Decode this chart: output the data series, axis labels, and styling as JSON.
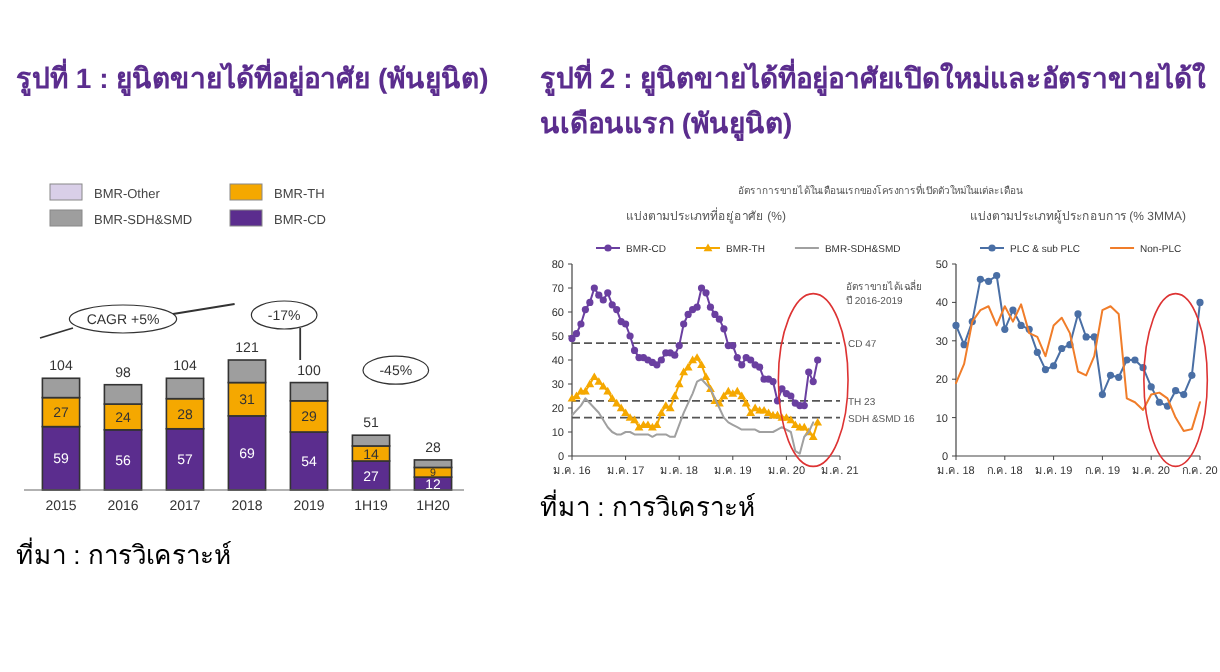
{
  "chart_data": [
    {
      "type": "bar",
      "stacked": true,
      "title": "รูปที่ 1 : ยูนิตขายได้ที่อยู่อาศัย (พันยูนิต)",
      "legend": "top",
      "categories": [
        "2015",
        "2016",
        "2017",
        "2018",
        "2019",
        "1H19",
        "1H20"
      ],
      "series": [
        {
          "name": "BMR-CD",
          "color": "#5b2d8e",
          "values": [
            59,
            56,
            57,
            69,
            54,
            27,
            12
          ],
          "value_labels": [
            "59",
            "56",
            "57",
            "69",
            "54",
            "27",
            "12"
          ]
        },
        {
          "name": "BMR-TH",
          "color": "#f5a800",
          "values": [
            27,
            24,
            28,
            31,
            29,
            14,
            9
          ],
          "value_labels": [
            "27",
            "24",
            "28",
            "31",
            "29",
            "14",
            "9"
          ]
        },
        {
          "name": "BMR-SDH&SMD",
          "color": "#9e9e9e",
          "values": [
            18,
            18,
            19,
            21,
            17,
            10,
            7
          ]
        },
        {
          "name": "BMR-Other",
          "color": "#d9cfe8",
          "values": [
            0,
            0,
            0,
            0,
            0,
            0,
            0
          ]
        }
      ],
      "totals": [
        "104",
        "98",
        "104",
        "121",
        "100",
        "51",
        "28"
      ],
      "annotations": [
        "CAGR +5%",
        "-17%",
        "-45%",
        "ที่มา : การวิเคราะห์"
      ]
    },
    {
      "type": "line",
      "title": "รูปที่ 2 : ยูนิตขายได้ที่อยู่อาศัยเปิดใหม่และอัตราขายได้ในเดือนแรก (พันยูนิต)",
      "subtitle": "อัตราการขายได้ในเดือนแรกของโครงการที่เปิดตัวใหม่ในแต่ละเดือน",
      "legend": "top",
      "x": [
        "2016-01",
        "2016-02",
        "2016-03",
        "2016-04",
        "2016-05",
        "2016-06",
        "2016-07",
        "2016-08",
        "2016-09",
        "2016-10",
        "2016-11",
        "2016-12",
        "2017-01",
        "2017-02",
        "2017-03",
        "2017-04",
        "2017-05",
        "2017-06",
        "2017-07",
        "2017-08",
        "2017-09",
        "2017-10",
        "2017-11",
        "2017-12",
        "2018-01",
        "2018-02",
        "2018-03",
        "2018-04",
        "2018-05",
        "2018-06",
        "2018-07",
        "2018-08",
        "2018-09",
        "2018-10",
        "2018-11",
        "2018-12",
        "2019-01",
        "2019-02",
        "2019-03",
        "2019-04",
        "2019-05",
        "2019-06",
        "2019-07",
        "2019-08",
        "2019-09",
        "2019-10",
        "2019-11",
        "2019-12",
        "2020-01",
        "2020-02",
        "2020-03",
        "2020-04",
        "2020-05",
        "2020-06",
        "2020-07",
        "2020-08"
      ],
      "series": [
        {
          "name": "BMR-CD",
          "color": "#6a3fa0",
          "marker": "circle",
          "values": [
            49,
            51,
            55,
            61,
            64,
            70,
            67,
            65,
            68,
            63,
            61,
            56,
            55,
            50,
            44,
            41,
            41,
            40,
            39,
            38,
            40,
            43,
            43,
            42,
            46,
            55,
            59,
            61,
            62,
            70,
            68,
            62,
            59,
            57,
            53,
            46,
            46,
            41,
            38,
            41,
            40,
            38,
            37,
            32,
            32,
            31,
            23,
            28,
            26,
            25,
            22,
            21,
            21,
            35,
            31,
            40
          ]
        },
        {
          "name": "BMR-TH",
          "color": "#f5a800",
          "marker": "triangle",
          "values": [
            24,
            25,
            27,
            27,
            30,
            33,
            31,
            29,
            27,
            24,
            22,
            20,
            18,
            16,
            15,
            12,
            13,
            13,
            12,
            13,
            18,
            21,
            20,
            25,
            30,
            35,
            37,
            40,
            41,
            38,
            33,
            28,
            23,
            22,
            25,
            27,
            26,
            27,
            25,
            22,
            18,
            20,
            19,
            19,
            18,
            17,
            17,
            16,
            16,
            15,
            13,
            12,
            12,
            10,
            8,
            14
          ]
        },
        {
          "name": "BMR-SDH&SMD",
          "color": "#a0a0a0",
          "marker": "none",
          "values": [
            17,
            19,
            21,
            24,
            22,
            20,
            18,
            15,
            12,
            10,
            9,
            9,
            10,
            10,
            9,
            9,
            9,
            9,
            8,
            9,
            9,
            9,
            8,
            8,
            13,
            18,
            22,
            26,
            31,
            32,
            30,
            28,
            24,
            20,
            16,
            14,
            13,
            12,
            11,
            11,
            11,
            11,
            10,
            10,
            10,
            10,
            11,
            12,
            11,
            10,
            2,
            1,
            8,
            10,
            14,
            null
          ]
        }
      ],
      "xlim": [
        "2016-01",
        "2021-01"
      ],
      "xticks": [
        {
          "value": "2016-01",
          "label": "ม.ค. 16"
        },
        {
          "value": "2017-01",
          "label": "ม.ค. 17"
        },
        {
          "value": "2018-01",
          "label": "ม.ค. 18"
        },
        {
          "value": "2019-01",
          "label": "ม.ค. 19"
        },
        {
          "value": "2020-01",
          "label": "ม.ค. 20"
        },
        {
          "value": "2021-01",
          "label": "ม.ค. 21"
        }
      ],
      "ylim": [
        0,
        80
      ],
      "yticks": [
        0,
        10,
        20,
        30,
        40,
        50,
        60,
        70,
        80
      ],
      "ref_lines": [
        {
          "axis": "y",
          "value": 47,
          "label": "CD 47",
          "color": "#555555",
          "line_style": "dashed"
        },
        {
          "axis": "y",
          "value": 23,
          "label": "TH 23",
          "color": "#555555",
          "line_style": "dashed"
        },
        {
          "axis": "y",
          "value": 16,
          "label": "SDH &SMD 16",
          "color": "#555555",
          "line_style": "dashed"
        }
      ],
      "annotations": [
        "แบ่งตามประเภทที่อยู่อาศัย (%)",
        "อัตราขายได้เฉลี่ย ปี 2016-2019",
        "ที่มา : การวิเคราะห์"
      ]
    },
    {
      "type": "line",
      "title": "แบ่งตามประเภทผู้ประกอบการ (% 3MMA)",
      "legend": "top",
      "x": [
        "2018-01",
        "2018-02",
        "2018-03",
        "2018-04",
        "2018-05",
        "2018-06",
        "2018-07",
        "2018-08",
        "2018-09",
        "2018-10",
        "2018-11",
        "2018-12",
        "2019-01",
        "2019-02",
        "2019-03",
        "2019-04",
        "2019-05",
        "2019-06",
        "2019-07",
        "2019-08",
        "2019-09",
        "2019-10",
        "2019-11",
        "2019-12",
        "2020-01",
        "2020-02",
        "2020-03",
        "2020-04",
        "2020-05",
        "2020-06",
        "2020-07"
      ],
      "series": [
        {
          "name": "PLC & sub PLC",
          "color": "#4a6fa5",
          "marker": "circle",
          "values": [
            34,
            29,
            35,
            46,
            45.5,
            47,
            33,
            38,
            34,
            33,
            27,
            22.5,
            23.5,
            28,
            29,
            37,
            31,
            31,
            16,
            21,
            20.5,
            25,
            25,
            23,
            18,
            14,
            13,
            17,
            16,
            21,
            40
          ]
        },
        {
          "name": "Non-PLC",
          "color": "#f07d2a",
          "marker": "none",
          "values": [
            19,
            24,
            35,
            38,
            39,
            34,
            39,
            35,
            39.5,
            32,
            31,
            26,
            34,
            36,
            32,
            22,
            21,
            26,
            38,
            39,
            37,
            15,
            14,
            12,
            16,
            16.5,
            15,
            10,
            6.5,
            7,
            14
          ]
        }
      ],
      "xlim": [
        "2018-01",
        "2020-07"
      ],
      "xticks": [
        {
          "value": "2018-01",
          "label": "ม.ค. 18"
        },
        {
          "value": "2018-07",
          "label": "ก.ค. 18"
        },
        {
          "value": "2019-01",
          "label": "ม.ค. 19"
        },
        {
          "value": "2019-07",
          "label": "ก.ค. 19"
        },
        {
          "value": "2020-01",
          "label": "ม.ค. 20"
        },
        {
          "value": "2020-07",
          "label": "ก.ค. 20"
        }
      ],
      "ylim": [
        0,
        50
      ],
      "yticks": [
        0,
        10,
        20,
        30,
        40,
        50
      ]
    }
  ]
}
